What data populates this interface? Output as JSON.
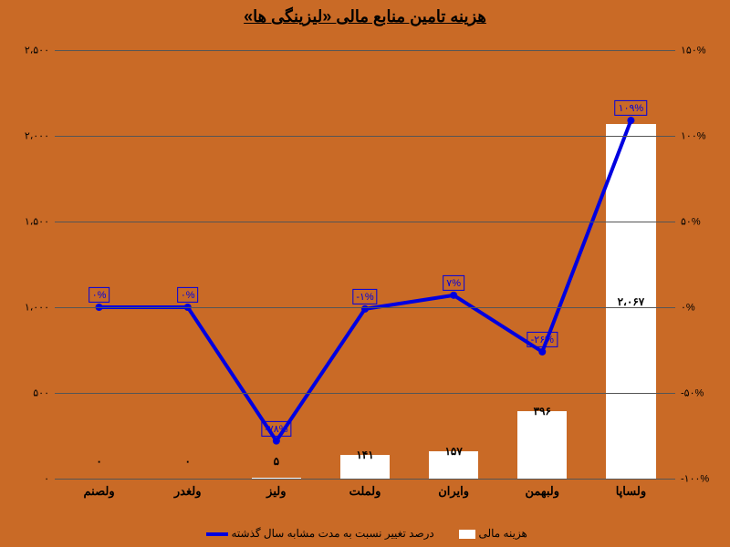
{
  "title": "هزینه تامین منابع مالی «لیزینگی ها»",
  "background_color": "#c96a26",
  "bar_color": "#ffffff",
  "line_color": "#0000e0",
  "grid_color": "#555555",
  "left_axis": {
    "min": 0,
    "max": 2500,
    "ticks": [
      0,
      500,
      1000,
      1500,
      2000,
      2500
    ],
    "labels": [
      "۰",
      "۵۰۰",
      "۱،۰۰۰",
      "۱،۵۰۰",
      "۲،۰۰۰",
      "۲،۵۰۰"
    ]
  },
  "right_axis": {
    "min": -100,
    "max": 150,
    "ticks": [
      -100,
      -50,
      0,
      50,
      100,
      150
    ],
    "labels": [
      "-۱۰۰%",
      "-۵۰%",
      "۰%",
      "۵۰%",
      "۱۰۰%",
      "۱۵۰%"
    ]
  },
  "categories": [
    "ولساپا",
    "ولبهمن",
    "وایران",
    "ولملت",
    "ولیز",
    "ولغدر",
    "ولصنم"
  ],
  "bars": {
    "values": [
      2067,
      396,
      157,
      141,
      5,
      0,
      0
    ],
    "labels": [
      "۲،۰۶۷",
      "۳۹۶",
      "۱۵۷",
      "۱۴۱",
      "۵",
      "۰",
      "۰"
    ]
  },
  "line": {
    "values": [
      109,
      -26,
      7,
      -1,
      -78,
      0,
      0
    ],
    "labels": [
      "۱۰۹%",
      "-۲۶%",
      "۷%",
      "-۱%",
      "-۷۸%",
      "۰%",
      "۰%"
    ]
  },
  "legend": {
    "bar": "هزینه مالی",
    "line": "درصد تغییر نسبت به مدت مشابه سال گذشته"
  }
}
